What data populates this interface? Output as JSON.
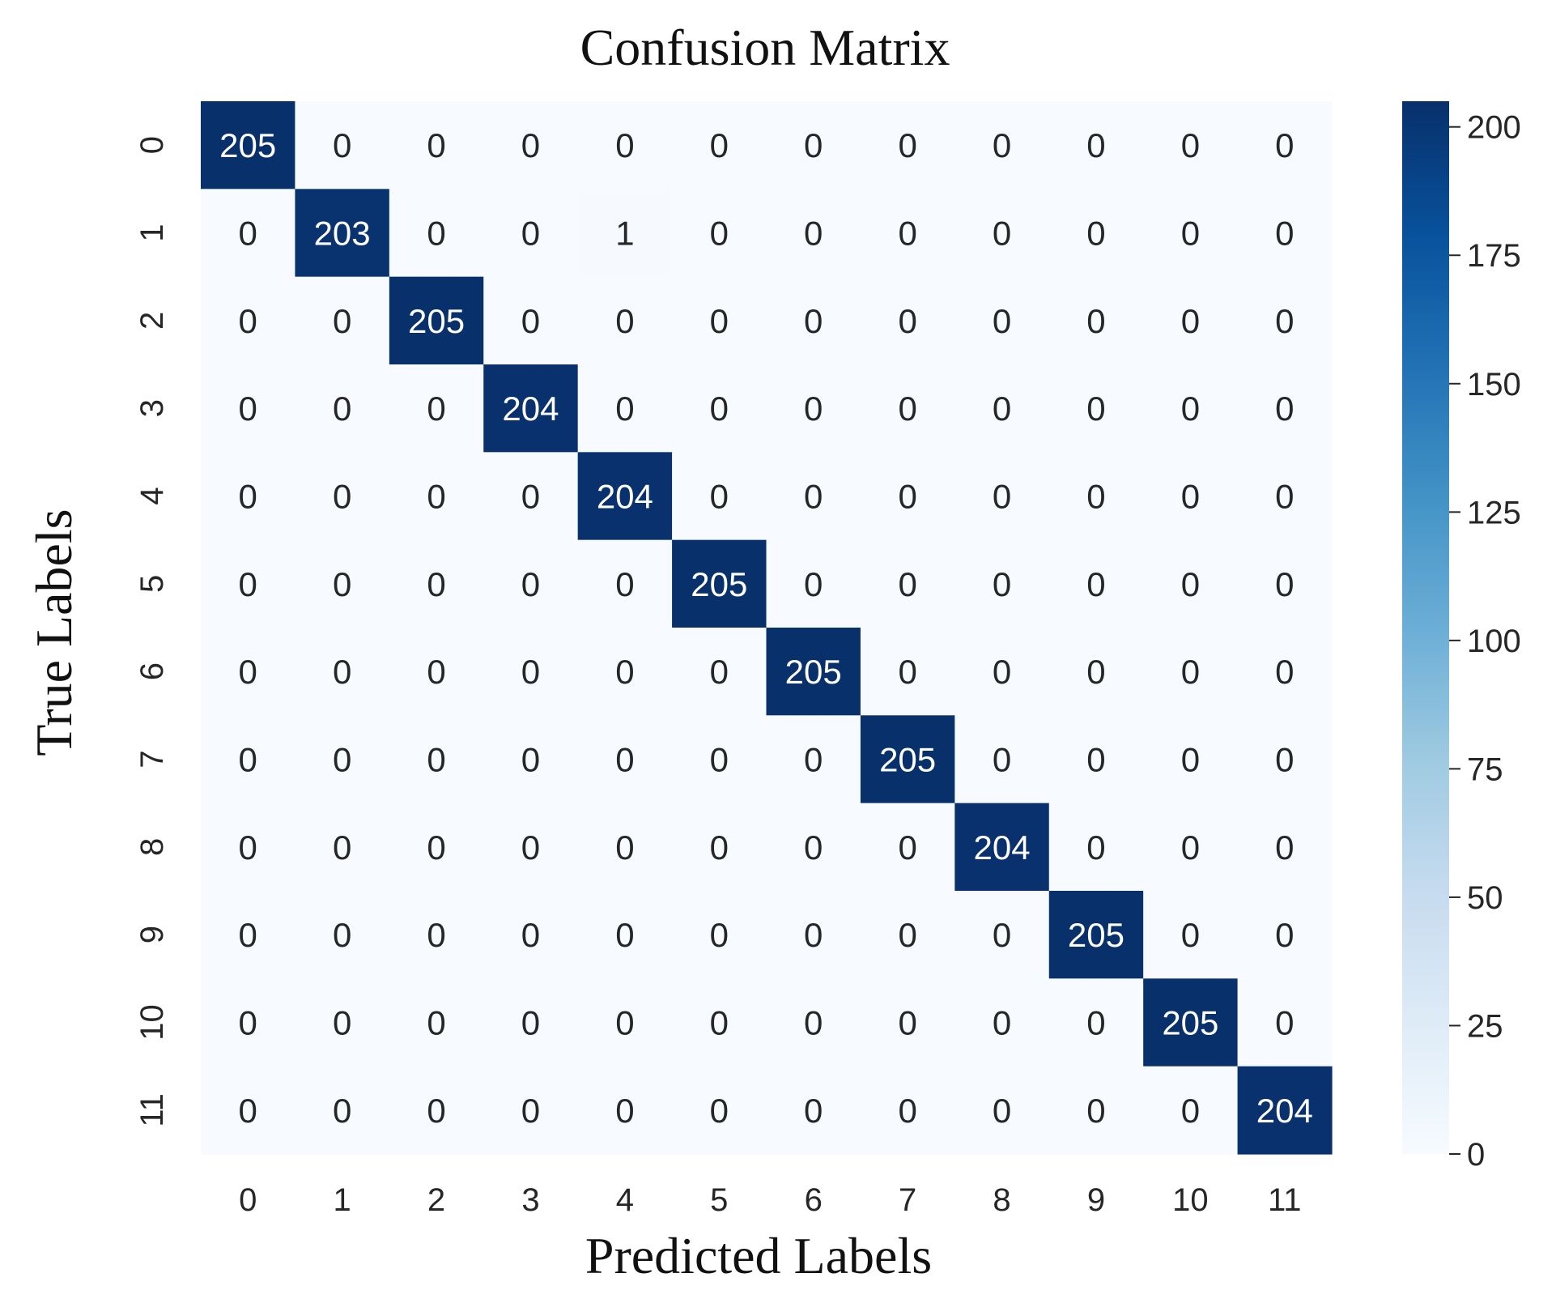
{
  "chart_data": {
    "type": "heatmap",
    "title": "Confusion Matrix",
    "xlabel": "Predicted Labels",
    "ylabel": "True Labels",
    "x_categories": [
      "0",
      "1",
      "2",
      "3",
      "4",
      "5",
      "6",
      "7",
      "8",
      "9",
      "10",
      "11"
    ],
    "y_categories": [
      "0",
      "1",
      "2",
      "3",
      "4",
      "5",
      "6",
      "7",
      "8",
      "9",
      "10",
      "11"
    ],
    "values": [
      [
        205,
        0,
        0,
        0,
        0,
        0,
        0,
        0,
        0,
        0,
        0,
        0
      ],
      [
        0,
        203,
        0,
        0,
        1,
        0,
        0,
        0,
        0,
        0,
        0,
        0
      ],
      [
        0,
        0,
        205,
        0,
        0,
        0,
        0,
        0,
        0,
        0,
        0,
        0
      ],
      [
        0,
        0,
        0,
        204,
        0,
        0,
        0,
        0,
        0,
        0,
        0,
        0
      ],
      [
        0,
        0,
        0,
        0,
        204,
        0,
        0,
        0,
        0,
        0,
        0,
        0
      ],
      [
        0,
        0,
        0,
        0,
        0,
        205,
        0,
        0,
        0,
        0,
        0,
        0
      ],
      [
        0,
        0,
        0,
        0,
        0,
        0,
        205,
        0,
        0,
        0,
        0,
        0
      ],
      [
        0,
        0,
        0,
        0,
        0,
        0,
        0,
        205,
        0,
        0,
        0,
        0
      ],
      [
        0,
        0,
        0,
        0,
        0,
        0,
        0,
        0,
        204,
        0,
        0,
        0
      ],
      [
        0,
        0,
        0,
        0,
        0,
        0,
        0,
        0,
        0,
        205,
        0,
        0
      ],
      [
        0,
        0,
        0,
        0,
        0,
        0,
        0,
        0,
        0,
        0,
        205,
        0
      ],
      [
        0,
        0,
        0,
        0,
        0,
        0,
        0,
        0,
        0,
        0,
        0,
        204
      ]
    ],
    "colorbar": {
      "colormap": "Blues",
      "range": [
        0,
        205
      ],
      "ticks": [
        0,
        25,
        50,
        75,
        100,
        125,
        150,
        175,
        200
      ],
      "tick_labels": [
        "0",
        "25",
        "50",
        "75",
        "100",
        "125",
        "150",
        "175",
        "200"
      ]
    },
    "colors": {
      "low": "#f7fbff",
      "high": "#08306b",
      "text_dark": "#262626",
      "text_light": "#ffffff"
    },
    "grid": false,
    "legend": "colorbar-right"
  }
}
